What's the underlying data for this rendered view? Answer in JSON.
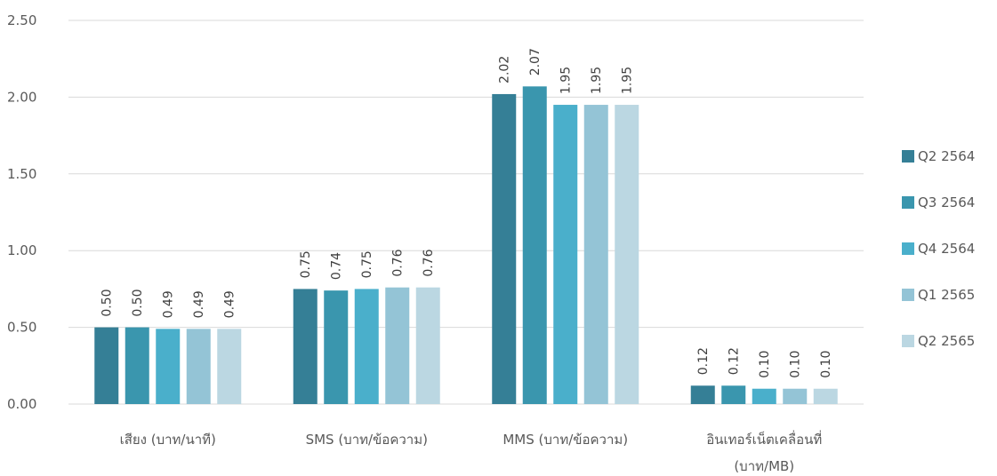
{
  "chart_data": {
    "type": "bar",
    "categories": [
      [
        "เสียง (บาท/นาที)"
      ],
      [
        "SMS (บาท/ข้อความ)"
      ],
      [
        "MMS (บาท/ข้อความ)"
      ],
      [
        "อินเทอร์เน็ตเคลื่อนที่",
        "(บาท/MB)"
      ]
    ],
    "series": [
      {
        "name": "Q2 2564",
        "color": "#357F96",
        "values": [
          0.5,
          0.75,
          2.02,
          0.12
        ],
        "labels": [
          "0.50",
          "0.75",
          "2.02",
          "0.12"
        ]
      },
      {
        "name": "Q3 2564",
        "color": "#3A96AE",
        "values": [
          0.5,
          0.74,
          2.07,
          0.12
        ],
        "labels": [
          "0.50",
          "0.74",
          "2.07",
          "0.12"
        ]
      },
      {
        "name": "Q4 2564",
        "color": "#4AAFCB",
        "values": [
          0.49,
          0.75,
          1.95,
          0.1
        ],
        "labels": [
          "0.49",
          "0.75",
          "1.95",
          "0.10"
        ]
      },
      {
        "name": "Q1 2565",
        "color": "#94C4D6",
        "values": [
          0.49,
          0.76,
          1.95,
          0.1
        ],
        "labels": [
          "0.49",
          "0.76",
          "1.95",
          "0.10"
        ]
      },
      {
        "name": "Q2 2565",
        "color": "#BBD7E2",
        "values": [
          0.49,
          0.76,
          1.95,
          0.1
        ],
        "labels": [
          "0.49",
          "0.76",
          "1.95",
          "0.10"
        ]
      }
    ],
    "y_ticks": [
      "0.00",
      "0.50",
      "1.00",
      "1.50",
      "2.00",
      "2.50"
    ],
    "ylim": [
      0,
      2.5
    ],
    "grid": true,
    "legend_position": "right",
    "title": "",
    "xlabel": "",
    "ylabel": ""
  }
}
